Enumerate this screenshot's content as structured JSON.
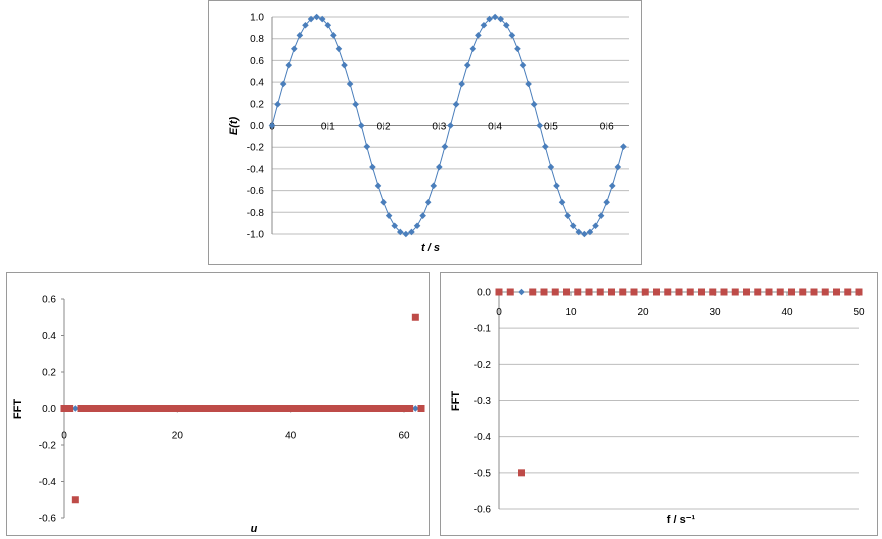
{
  "colors": {
    "blue": "#4a7ebb",
    "red": "#be4b48",
    "grid": "#bdbdbd",
    "axis": "#888888"
  },
  "chart_data": [
    {
      "type": "line",
      "marker": "diamond",
      "title": "",
      "xlabel": "t / s",
      "ylabel": "E(t)",
      "xlim": [
        0,
        0.64
      ],
      "ylim": [
        -1.0,
        1.0
      ],
      "xticks": [
        "0",
        "0.1",
        "0.2",
        "0.3",
        "0.4",
        "0.5",
        "0.6"
      ],
      "yticks": [
        "1.0",
        "0.8",
        "0.6",
        "0.4",
        "0.2",
        "0.0",
        "-0.2",
        "-0.4",
        "-0.6",
        "-0.8",
        "-1.0"
      ],
      "grid": true,
      "series": [
        {
          "x": [
            0,
            0.01,
            0.02,
            0.03,
            0.04,
            0.05,
            0.06,
            0.07,
            0.08,
            0.09,
            0.1,
            0.11,
            0.12,
            0.13,
            0.14,
            0.15,
            0.16,
            0.17,
            0.18,
            0.19,
            0.2,
            0.21,
            0.22,
            0.23,
            0.24,
            0.25,
            0.26,
            0.27,
            0.28,
            0.29,
            0.3,
            0.31,
            0.32,
            0.33,
            0.34,
            0.35,
            0.36,
            0.37,
            0.38,
            0.39,
            0.4,
            0.41,
            0.42,
            0.43,
            0.44,
            0.45,
            0.46,
            0.47,
            0.48,
            0.49,
            0.5,
            0.51,
            0.52,
            0.53,
            0.54,
            0.55,
            0.56,
            0.57,
            0.58,
            0.59,
            0.6,
            0.61,
            0.62,
            0.63
          ],
          "values": [
            0.0,
            0.195,
            0.383,
            0.556,
            0.707,
            0.831,
            0.924,
            0.981,
            1.0,
            0.981,
            0.924,
            0.831,
            0.707,
            0.556,
            0.383,
            0.195,
            0.0,
            -0.195,
            -0.383,
            -0.556,
            -0.707,
            -0.831,
            -0.924,
            -0.981,
            -1.0,
            -0.981,
            -0.924,
            -0.831,
            -0.707,
            -0.556,
            -0.383,
            -0.195,
            0.0,
            0.195,
            0.383,
            0.556,
            0.707,
            0.831,
            0.924,
            0.981,
            1.0,
            0.981,
            0.924,
            0.831,
            0.707,
            0.556,
            0.383,
            0.195,
            0.0,
            -0.195,
            -0.383,
            -0.556,
            -0.707,
            -0.831,
            -0.924,
            -0.981,
            -1.0,
            -0.981,
            -0.924,
            -0.831,
            -0.707,
            -0.556,
            -0.383,
            -0.195
          ]
        }
      ]
    },
    {
      "type": "scatter",
      "title": "",
      "xlabel": "u",
      "ylabel": "FFT",
      "xlim": [
        0,
        63
      ],
      "ylim": [
        -0.6,
        0.6
      ],
      "xticks": [
        "0",
        "20",
        "40",
        "60"
      ],
      "yticks": [
        "0.6",
        "0.4",
        "0.2",
        "0.0",
        "-0.2",
        "-0.4",
        "-0.6"
      ],
      "grid": false,
      "series": [
        {
          "marker": "diamond",
          "x": [
            0,
            1,
            2,
            3,
            4,
            5,
            6,
            7,
            8,
            9,
            10,
            11,
            12,
            13,
            14,
            15,
            16,
            17,
            18,
            19,
            20,
            21,
            22,
            23,
            24,
            25,
            26,
            27,
            28,
            29,
            30,
            31,
            32,
            33,
            34,
            35,
            36,
            37,
            38,
            39,
            40,
            41,
            42,
            43,
            44,
            45,
            46,
            47,
            48,
            49,
            50,
            51,
            52,
            53,
            54,
            55,
            56,
            57,
            58,
            59,
            60,
            61,
            62,
            63
          ],
          "values": [
            0,
            0,
            0,
            0,
            0,
            0,
            0,
            0,
            0,
            0,
            0,
            0,
            0,
            0,
            0,
            0,
            0,
            0,
            0,
            0,
            0,
            0,
            0,
            0,
            0,
            0,
            0,
            0,
            0,
            0,
            0,
            0,
            0,
            0,
            0,
            0,
            0,
            0,
            0,
            0,
            0,
            0,
            0,
            0,
            0,
            0,
            0,
            0,
            0,
            0,
            0,
            0,
            0,
            0,
            0,
            0,
            0,
            0,
            0,
            0,
            0,
            0,
            0,
            0
          ]
        },
        {
          "marker": "square",
          "x": [
            0,
            1,
            2,
            3,
            4,
            5,
            6,
            7,
            8,
            9,
            10,
            11,
            12,
            13,
            14,
            15,
            16,
            17,
            18,
            19,
            20,
            21,
            22,
            23,
            24,
            25,
            26,
            27,
            28,
            29,
            30,
            31,
            32,
            33,
            34,
            35,
            36,
            37,
            38,
            39,
            40,
            41,
            42,
            43,
            44,
            45,
            46,
            47,
            48,
            49,
            50,
            51,
            52,
            53,
            54,
            55,
            56,
            57,
            58,
            59,
            60,
            61,
            62,
            63
          ],
          "values": [
            0,
            0,
            -0.5,
            0,
            0,
            0,
            0,
            0,
            0,
            0,
            0,
            0,
            0,
            0,
            0,
            0,
            0,
            0,
            0,
            0,
            0,
            0,
            0,
            0,
            0,
            0,
            0,
            0,
            0,
            0,
            0,
            0,
            0,
            0,
            0,
            0,
            0,
            0,
            0,
            0,
            0,
            0,
            0,
            0,
            0,
            0,
            0,
            0,
            0,
            0,
            0,
            0,
            0,
            0,
            0,
            0,
            0,
            0,
            0,
            0,
            0,
            0,
            0.5,
            0
          ]
        }
      ]
    },
    {
      "type": "scatter",
      "title": "",
      "xlabel": "f / s⁻¹",
      "ylabel": "FFT",
      "xlim": [
        0,
        50
      ],
      "ylim": [
        -0.6,
        0.0
      ],
      "xticks": [
        "0",
        "10",
        "20",
        "30",
        "40",
        "50"
      ],
      "yticks": [
        "0.0",
        "-0.1",
        "-0.2",
        "-0.3",
        "-0.4",
        "-0.5",
        "-0.6"
      ],
      "grid": true,
      "series": [
        {
          "marker": "diamond",
          "x": [
            0,
            1.5625,
            3.125,
            4.6875,
            6.25,
            7.8125,
            9.375,
            10.9375,
            12.5,
            14.0625,
            15.625,
            17.1875,
            18.75,
            20.3125,
            21.875,
            23.4375,
            25,
            26.5625,
            28.125,
            29.6875,
            31.25,
            32.8125,
            34.375,
            35.9375,
            37.5,
            39.0625,
            40.625,
            42.1875,
            43.75,
            45.3125,
            46.875,
            48.4375,
            50
          ],
          "values": [
            0,
            0,
            0,
            0,
            0,
            0,
            0,
            0,
            0,
            0,
            0,
            0,
            0,
            0,
            0,
            0,
            0,
            0,
            0,
            0,
            0,
            0,
            0,
            0,
            0,
            0,
            0,
            0,
            0,
            0,
            0,
            0,
            0
          ]
        },
        {
          "marker": "square",
          "x": [
            0,
            1.5625,
            3.125,
            4.6875,
            6.25,
            7.8125,
            9.375,
            10.9375,
            12.5,
            14.0625,
            15.625,
            17.1875,
            18.75,
            20.3125,
            21.875,
            23.4375,
            25,
            26.5625,
            28.125,
            29.6875,
            31.25,
            32.8125,
            34.375,
            35.9375,
            37.5,
            39.0625,
            40.625,
            42.1875,
            43.75,
            45.3125,
            46.875,
            48.4375,
            50
          ],
          "values": [
            0,
            0,
            -0.5,
            0,
            0,
            0,
            0,
            0,
            0,
            0,
            0,
            0,
            0,
            0,
            0,
            0,
            0,
            0,
            0,
            0,
            0,
            0,
            0,
            0,
            0,
            0,
            0,
            0,
            0,
            0,
            0,
            0,
            0
          ]
        }
      ]
    }
  ]
}
